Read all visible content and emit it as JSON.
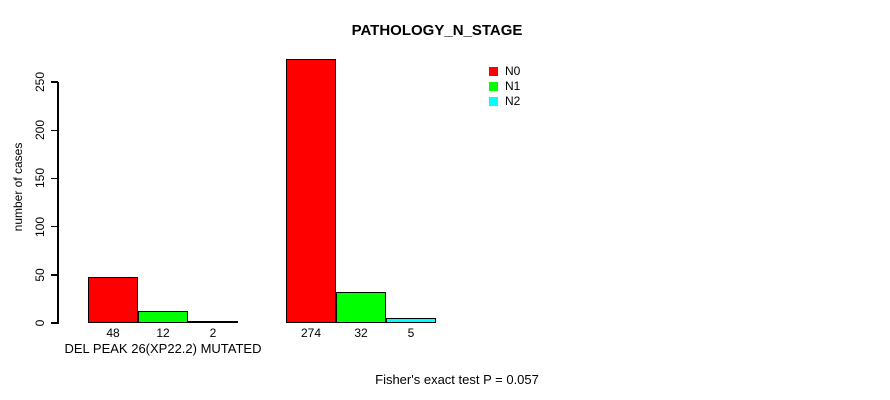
{
  "chart_data": {
    "type": "bar",
    "title": "PATHOLOGY_N_STAGE",
    "ylabel": "number of cases",
    "xlabel": "",
    "yticks": [
      0,
      50,
      100,
      150,
      200,
      250
    ],
    "ylim": [
      0,
      280
    ],
    "grid": false,
    "legend_position": "top-right",
    "bar_border_color": "#000000",
    "categories": [
      "DEL PEAK 26(XP22.2) MUTATED",
      ""
    ],
    "series": [
      {
        "name": "N0",
        "color": "#ff0000",
        "values": [
          48,
          274
        ]
      },
      {
        "name": "N1",
        "color": "#00ff00",
        "values": [
          12,
          32
        ]
      },
      {
        "name": "N2",
        "color": "#00ffff",
        "values": [
          2,
          5
        ]
      }
    ],
    "annotation": "Fisher's exact test P = 0.057"
  },
  "footer": {
    "note": "Fisher's exact test P = 0.057"
  }
}
